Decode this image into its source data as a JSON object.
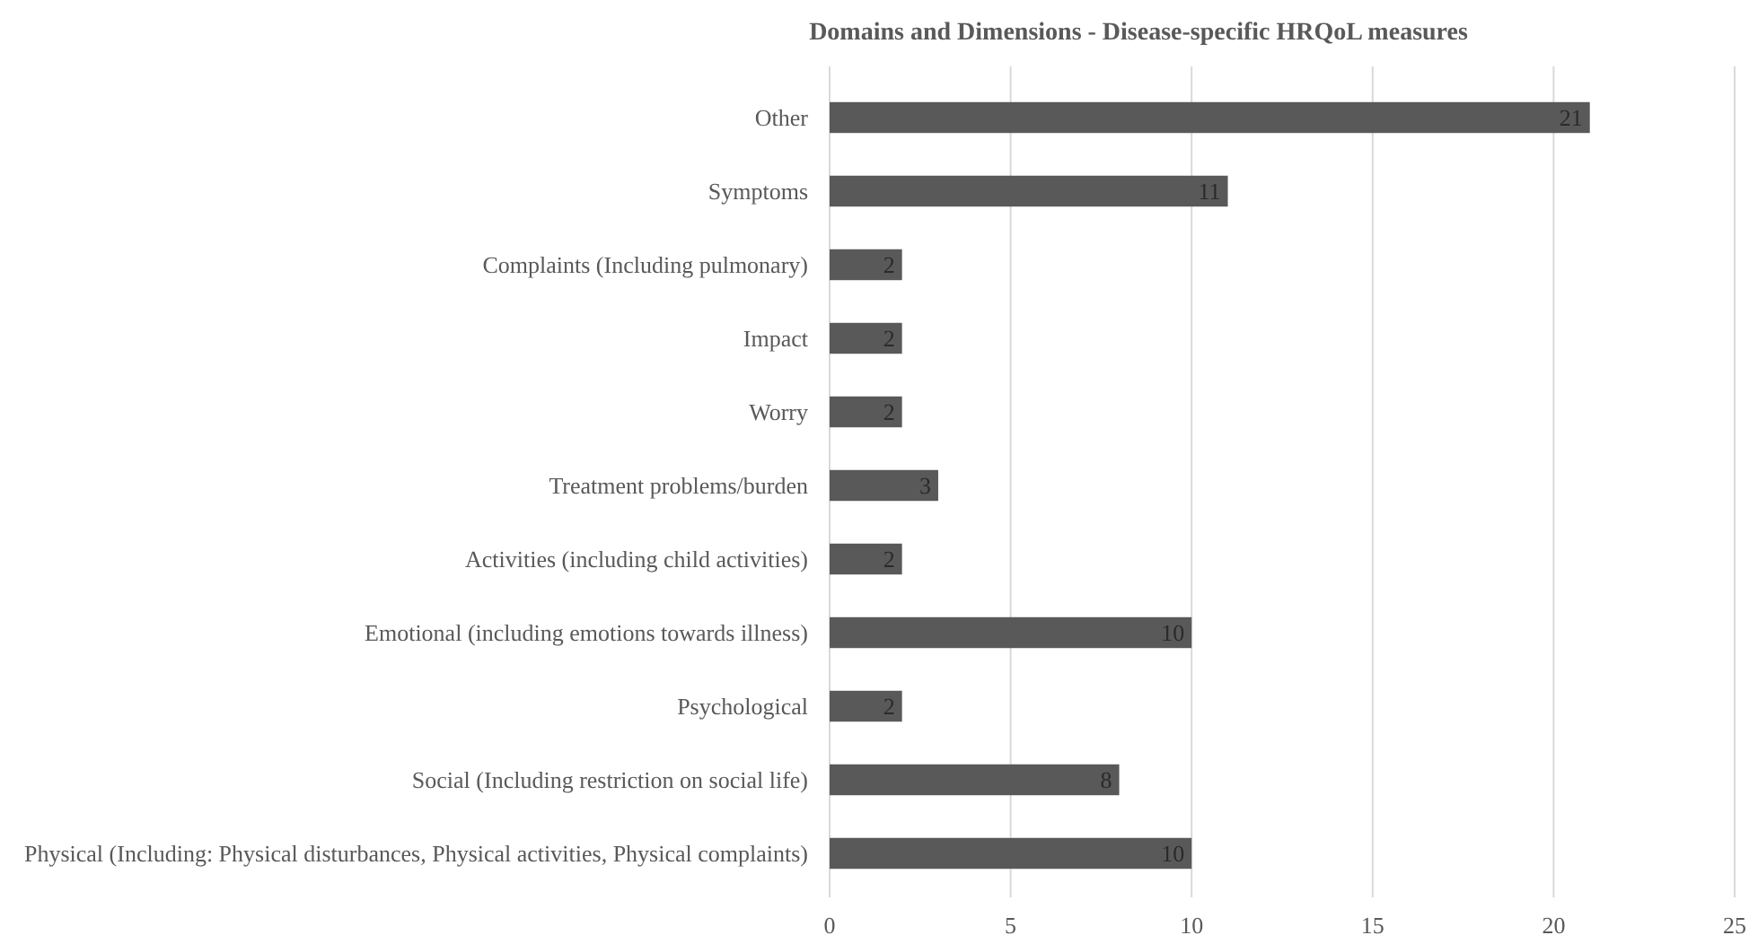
{
  "chart_data": {
    "type": "bar",
    "orientation": "horizontal",
    "title": "Domains and Dimensions - Disease-specific HRQoL measures",
    "categories": [
      "Other",
      "Symptoms",
      "Complaints (Including pulmonary)",
      "Impact",
      "Worry",
      "Treatment problems/burden",
      "Activities (including child activities)",
      "Emotional (including emotions towards illness)",
      "Psychological",
      "Social (Including restriction on social life)",
      "Physical (Including: Physical disturbances, Physical activities, Physical complaints)"
    ],
    "values": [
      21,
      11,
      2,
      2,
      2,
      3,
      2,
      10,
      2,
      8,
      10
    ],
    "color": "#595959",
    "xlim": [
      0,
      25
    ],
    "xticks": [
      0,
      5,
      10,
      15,
      20,
      25
    ],
    "grid": "x",
    "data_labels": true
  }
}
